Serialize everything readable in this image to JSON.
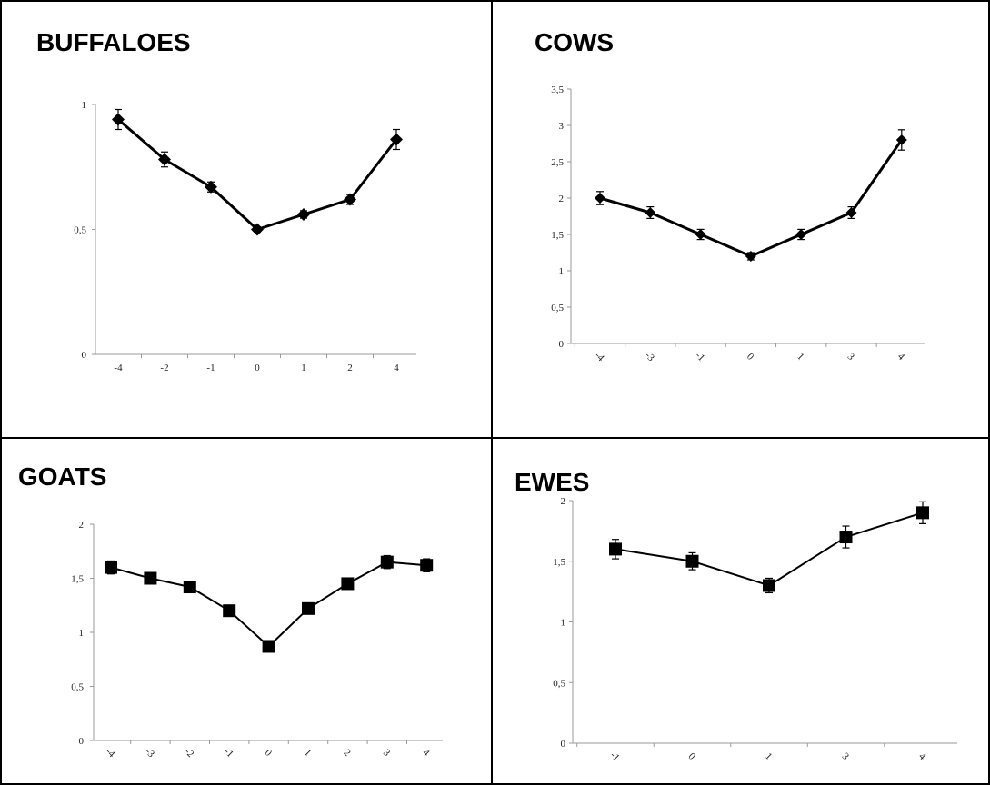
{
  "figure": {
    "border_color": "#000000",
    "series_color": "#000000",
    "axis_color": "#9a9a9a"
  },
  "chart_data": [
    {
      "id": "buffaloes",
      "type": "line",
      "title": "BUFFALOES",
      "marker": "diamond",
      "categories": [
        "-4",
        "-2",
        "-1",
        "0",
        "1",
        "2",
        "4"
      ],
      "values": [
        0.94,
        0.78,
        0.67,
        0.5,
        0.56,
        0.62,
        0.86
      ],
      "errors": [
        0.04,
        0.03,
        0.02,
        0.01,
        0.015,
        0.02,
        0.04
      ],
      "ylim": [
        0,
        1
      ],
      "yticks": [
        0,
        0.5,
        1
      ],
      "ytick_labels": [
        "0",
        "0,5",
        "1"
      ],
      "xtick_rotation": 0,
      "xlabel": "",
      "ylabel": "",
      "grid": false
    },
    {
      "id": "cows",
      "type": "line",
      "title": "COWS",
      "marker": "diamond",
      "categories": [
        "-4",
        "-3",
        "-1",
        "0",
        "1",
        "3",
        "4"
      ],
      "values": [
        2.0,
        1.8,
        1.5,
        1.2,
        1.5,
        1.8,
        2.8
      ],
      "errors": [
        0.09,
        0.08,
        0.07,
        0.05,
        0.07,
        0.08,
        0.14
      ],
      "ylim": [
        0,
        3.5
      ],
      "yticks": [
        0,
        0.5,
        1,
        1.5,
        2,
        2.5,
        3,
        3.5
      ],
      "ytick_labels": [
        "0",
        "0,5",
        "1",
        "1,5",
        "2",
        "2,5",
        "3",
        "3,5"
      ],
      "xtick_rotation": 45,
      "xlabel": "",
      "ylabel": "",
      "grid": false
    },
    {
      "id": "goats",
      "type": "line",
      "title": "GOATS",
      "marker": "square",
      "categories": [
        "-4",
        "-3",
        "-2",
        "-1",
        "0",
        "1",
        "2",
        "3",
        "4"
      ],
      "values": [
        1.6,
        1.5,
        1.42,
        1.2,
        0.87,
        1.22,
        1.45,
        1.65,
        1.62
      ],
      "errors": [
        0.06,
        0.05,
        0.05,
        0.04,
        0.04,
        0.05,
        0.05,
        0.06,
        0.06
      ],
      "ylim": [
        0,
        2
      ],
      "yticks": [
        0,
        0.5,
        1,
        1.5,
        2
      ],
      "ytick_labels": [
        "0",
        "0,5",
        "1",
        "1,5",
        "2"
      ],
      "xtick_rotation": 45,
      "xlabel": "",
      "ylabel": "",
      "grid": false
    },
    {
      "id": "ewes",
      "type": "line",
      "title": "EWES",
      "marker": "square",
      "categories": [
        "-1",
        "0",
        "1",
        "3",
        "4"
      ],
      "values": [
        1.6,
        1.5,
        1.3,
        1.7,
        1.9
      ],
      "errors": [
        0.08,
        0.07,
        0.06,
        0.09,
        0.09
      ],
      "ylim": [
        0,
        2
      ],
      "yticks": [
        0,
        0.5,
        1,
        1.5,
        2
      ],
      "ytick_labels": [
        "0",
        "0,5",
        "1",
        "1,5",
        "2"
      ],
      "xtick_rotation": 45,
      "xlabel": "",
      "ylabel": "",
      "grid": false
    }
  ]
}
